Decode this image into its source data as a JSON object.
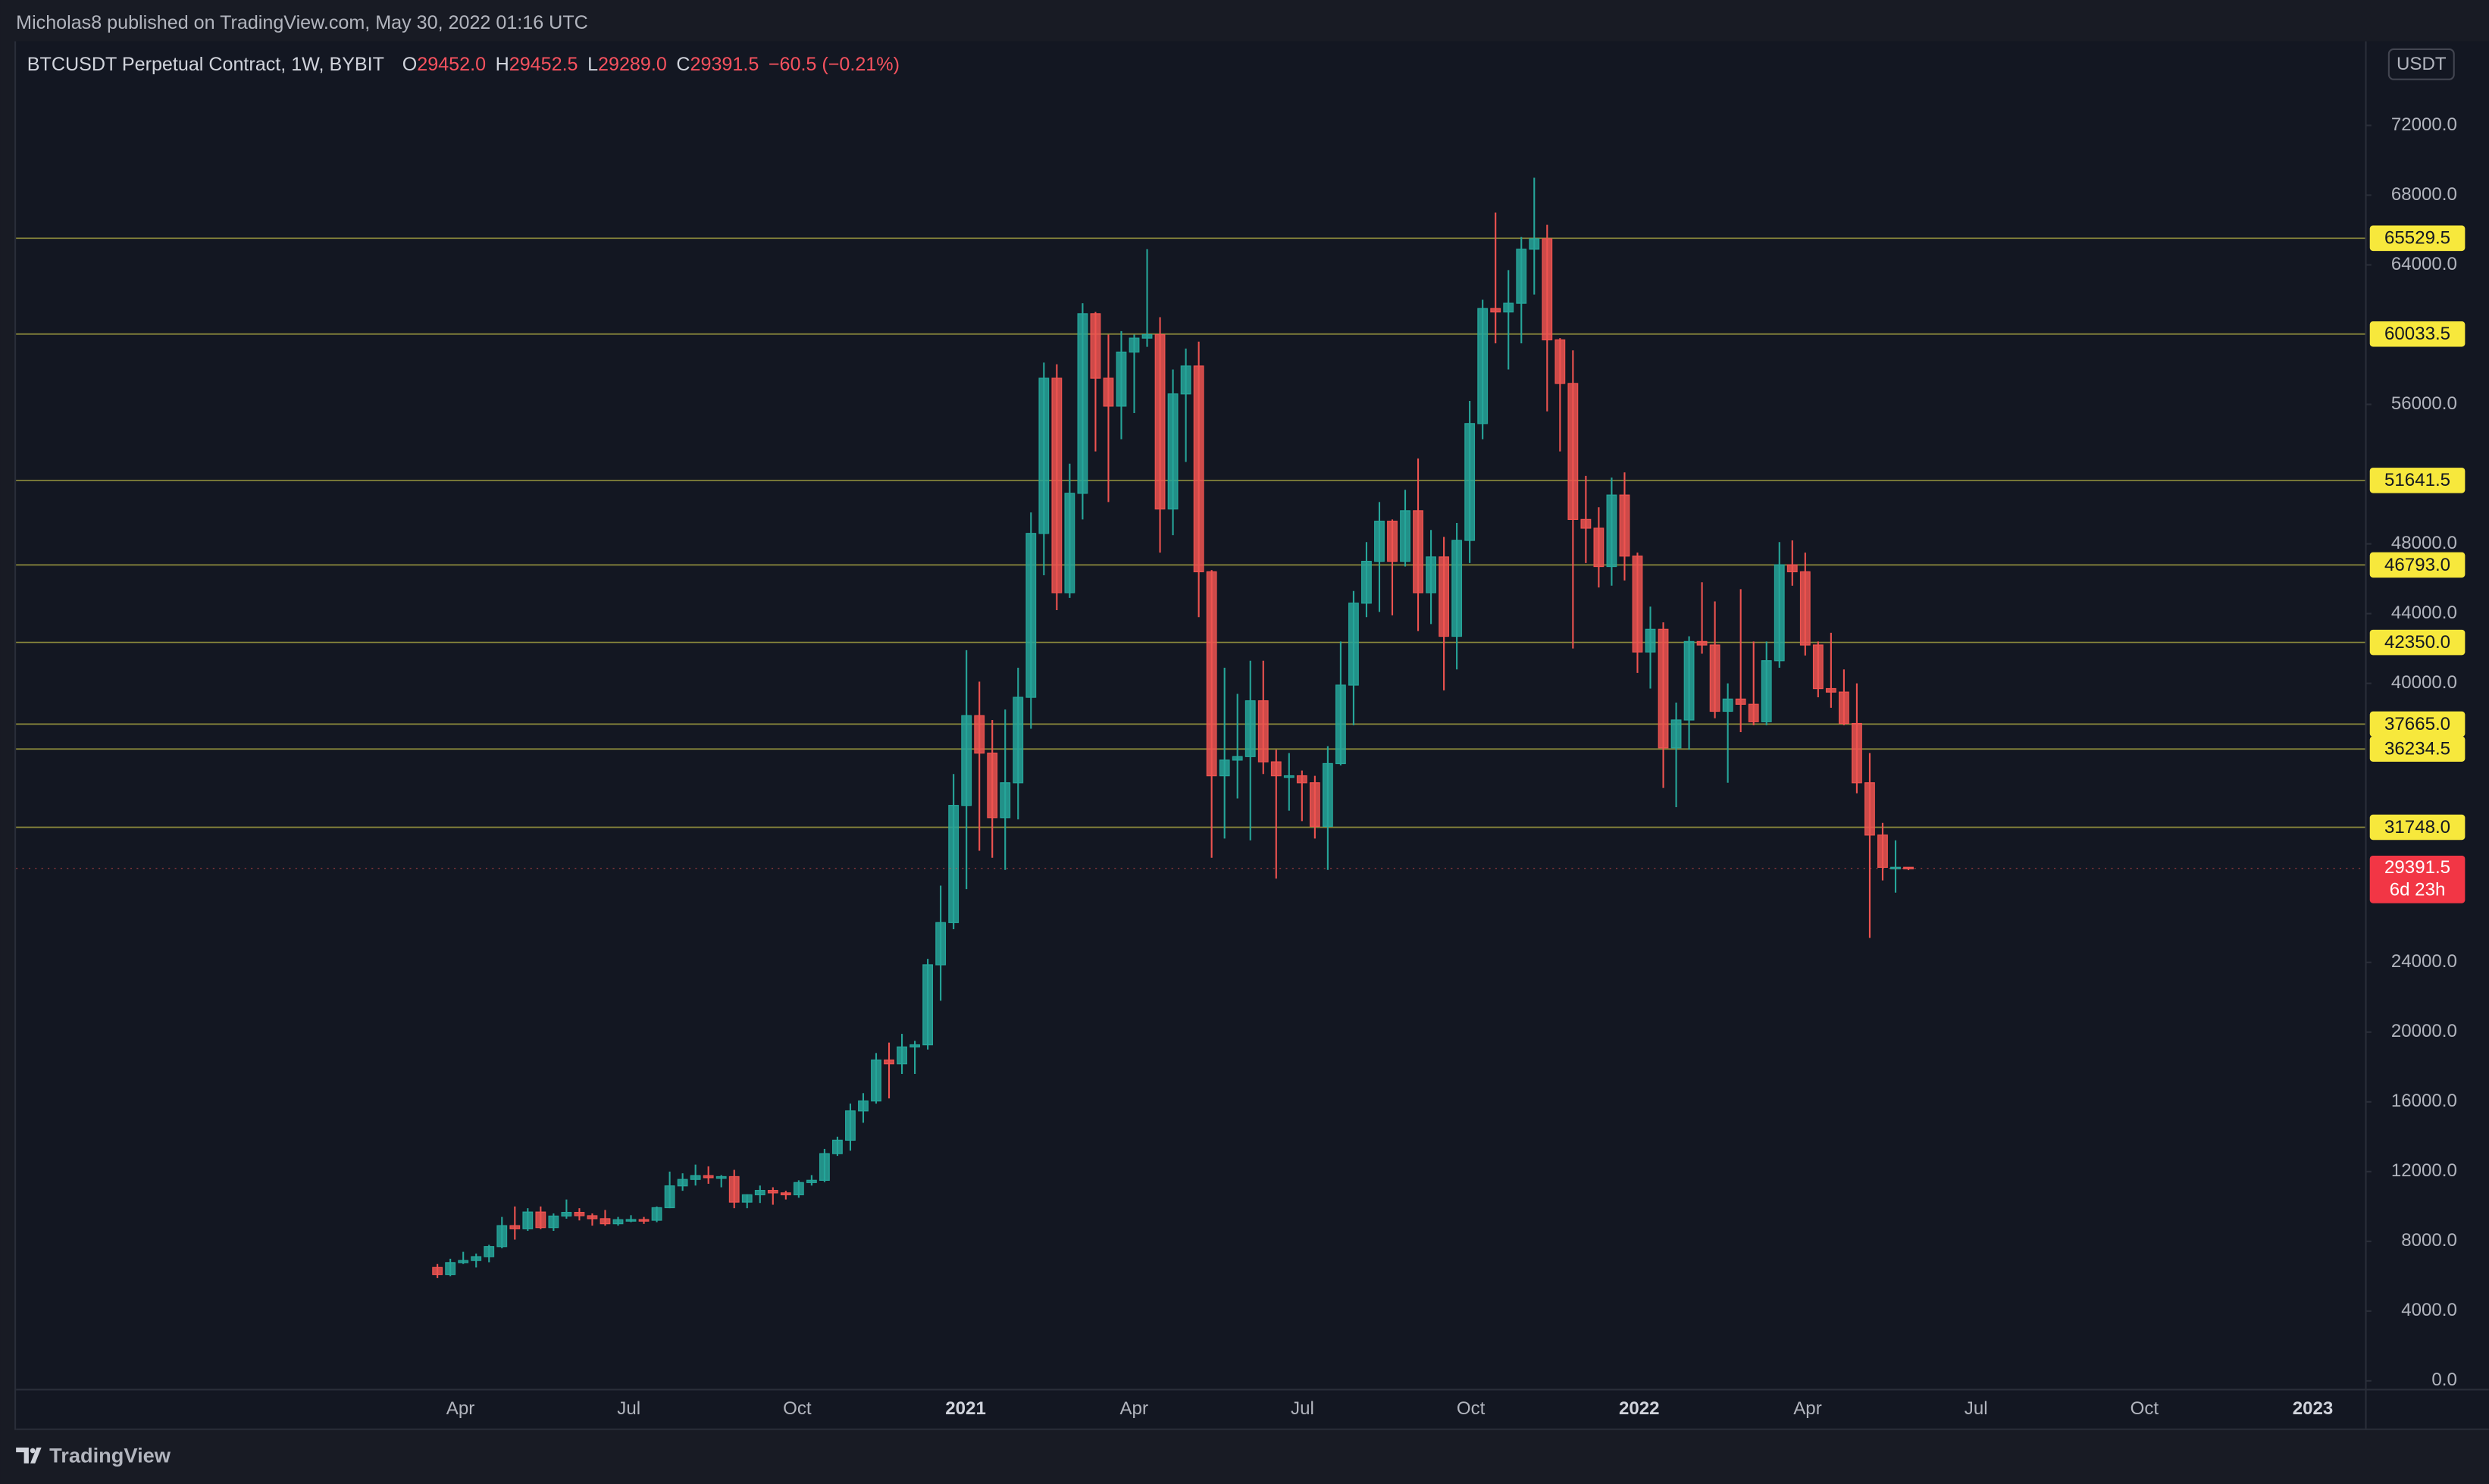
{
  "attribution": "Micholas8 published on TradingView.com, May 30, 2022 01:16 UTC",
  "brand": "TradingView",
  "chart_data": {
    "type": "candlestick",
    "title": "BTCUSDT Perpetual Contract, 1W, BYBIT",
    "currency_button": "USDT",
    "ohlc_legend": [
      {
        "label": "O",
        "value": "29452.0"
      },
      {
        "label": "H",
        "value": "29452.5"
      },
      {
        "label": "L",
        "value": "29289.0"
      },
      {
        "label": "C",
        "value": "29391.5"
      }
    ],
    "change": "−60.5 (−0.21%)",
    "up_color": "#26a69a",
    "down_color": "#ef5350",
    "level_color": "#8c8a3c",
    "level_label_color": "#f7e83c",
    "grid": false,
    "ylim": [
      -455,
      76825
    ],
    "yticks": [
      {
        "value": 0,
        "label": "0.0"
      },
      {
        "value": 4000,
        "label": "4000.0"
      },
      {
        "value": 8000,
        "label": "8000.0"
      },
      {
        "value": 12000,
        "label": "12000.0"
      },
      {
        "value": 16000,
        "label": "16000.0"
      },
      {
        "value": 20000,
        "label": "20000.0"
      },
      {
        "value": 24000,
        "label": "24000.0"
      },
      {
        "value": 40000,
        "label": "40000.0"
      },
      {
        "value": 44000,
        "label": "44000.0"
      },
      {
        "value": 48000,
        "label": "48000.0"
      },
      {
        "value": 56000,
        "label": "56000.0"
      },
      {
        "value": 64000,
        "label": "64000.0"
      },
      {
        "value": 68000,
        "label": "68000.0"
      },
      {
        "value": 72000,
        "label": "72000.0"
      }
    ],
    "xticks": [
      "Apr",
      "Jul",
      "Oct",
      "2021",
      "Apr",
      "Jul",
      "Oct",
      "2022",
      "Apr",
      "Jul",
      "Oct",
      "2023"
    ],
    "levels": [
      {
        "value": 65529.5,
        "label": "65529.5"
      },
      {
        "value": 60033.5,
        "label": "60033.5"
      },
      {
        "value": 51641.5,
        "label": "51641.5"
      },
      {
        "value": 46793.0,
        "label": "46793.0"
      },
      {
        "value": 42350.0,
        "label": "42350.0"
      },
      {
        "value": 37665.0,
        "label": "37665.0"
      },
      {
        "value": 36234.5,
        "label": "36234.5"
      },
      {
        "value": 31748.0,
        "label": "31748.0"
      }
    ],
    "last_price": {
      "value": 29391.5,
      "label": "29391.5"
    },
    "countdown": "6d 23h",
    "open": [
      6500,
      6100,
      6780,
      6900,
      7120,
      7700,
      8900,
      8720,
      9680,
      8790,
      9450,
      9660,
      9470,
      9300,
      9010,
      9240,
      9250,
      9210,
      9930,
      11180,
      11550,
      11770,
      11650,
      11710,
      10250,
      10670,
      10920,
      10780,
      10670,
      11370,
      11500,
      13030,
      13800,
      15480,
      16050,
      18400,
      18180,
      19150,
      19270,
      23860,
      26280,
      33000,
      38150,
      36000,
      32300,
      34300,
      39200,
      48600,
      57500,
      45200,
      50900,
      61200,
      57500,
      55900,
      59000,
      59800,
      60000,
      50000,
      56600,
      58200,
      46400,
      34700,
      35600,
      35800,
      39000,
      35500,
      34700,
      34700,
      34300,
      31800,
      35400,
      39900,
      44600,
      47000,
      49300,
      47000,
      49900,
      45200,
      47250,
      42700,
      48200,
      54900,
      61500,
      61300,
      61800,
      64900,
      65500,
      59700,
      57200,
      49400,
      48900,
      46700,
      50800,
      47300,
      41800,
      43100,
      36300,
      37900,
      42400,
      42200,
      38400,
      39100,
      38800,
      37800,
      41300,
      46800,
      46400,
      42200,
      39700,
      39500,
      37700,
      34300,
      31300,
      29450,
      29452
    ],
    "high": [
      6700,
      7000,
      7400,
      7300,
      7800,
      9400,
      10000,
      9900,
      10000,
      9600,
      10400,
      9900,
      9600,
      9800,
      9400,
      9500,
      9400,
      10000,
      12000,
      11900,
      12400,
      12300,
      11800,
      12100,
      10700,
      11200,
      11100,
      10900,
      11500,
      11800,
      13300,
      14000,
      15900,
      16500,
      18800,
      19400,
      19900,
      19500,
      24200,
      28400,
      34800,
      41900,
      40100,
      37900,
      38500,
      40900,
      49800,
      58400,
      58300,
      52600,
      61800,
      61300,
      60000,
      60200,
      60000,
      64900,
      61000,
      58000,
      59200,
      59600,
      46500,
      40900,
      39400,
      41300,
      41300,
      36200,
      36000,
      35000,
      34700,
      36400,
      42400,
      45300,
      48100,
      50400,
      49400,
      51100,
      52900,
      48800,
      48400,
      49200,
      56200,
      62000,
      67000,
      63700,
      65600,
      69000,
      66300,
      59800,
      59100,
      51900,
      50100,
      51800,
      52100,
      47500,
      44400,
      43500,
      38900,
      42700,
      45800,
      44700,
      40000,
      45400,
      42400,
      42400,
      48100,
      48200,
      47500,
      42400,
      42900,
      40800,
      40000,
      36000,
      32000,
      31000,
      29452.5
    ],
    "low": [
      5900,
      6000,
      6700,
      6500,
      6800,
      7600,
      8100,
      8600,
      8700,
      8600,
      9300,
      9200,
      8900,
      8900,
      8900,
      9100,
      9000,
      9100,
      9900,
      10900,
      11200,
      11300,
      11100,
      9900,
      9900,
      10200,
      10100,
      10400,
      10500,
      11200,
      11400,
      12900,
      13200,
      14800,
      15900,
      16200,
      17600,
      17600,
      19000,
      21800,
      25900,
      28200,
      30400,
      30000,
      29300,
      32200,
      37400,
      46200,
      44200,
      44900,
      49400,
      53300,
      50400,
      54000,
      55500,
      59300,
      47500,
      48500,
      52700,
      43800,
      30000,
      31100,
      33400,
      31000,
      34800,
      28800,
      32700,
      32100,
      31100,
      29300,
      35300,
      37600,
      43800,
      44100,
      43900,
      46700,
      43000,
      43400,
      39600,
      40800,
      46900,
      54000,
      59500,
      58000,
      59500,
      62300,
      55600,
      53300,
      42000,
      46900,
      45500,
      45600,
      45900,
      40600,
      39700,
      34000,
      32900,
      36200,
      41700,
      38000,
      34300,
      37200,
      37600,
      37600,
      40900,
      45600,
      41600,
      39200,
      38600,
      37600,
      33700,
      25400,
      28700,
      28000,
      29289
    ],
    "close": [
      6100,
      6780,
      6900,
      7120,
      7700,
      8900,
      8720,
      9680,
      8790,
      9450,
      9660,
      9470,
      9300,
      9010,
      9240,
      9250,
      9210,
      9930,
      11180,
      11550,
      11770,
      11650,
      11710,
      10250,
      10670,
      10920,
      10780,
      10670,
      11370,
      11500,
      13030,
      13800,
      15480,
      16050,
      18400,
      18180,
      19150,
      19270,
      23860,
      26280,
      33000,
      38150,
      36000,
      32300,
      34300,
      39200,
      48600,
      57500,
      45200,
      50900,
      61200,
      57500,
      55900,
      59000,
      59800,
      60000,
      50000,
      56600,
      58200,
      46400,
      34700,
      35600,
      35800,
      39000,
      35500,
      34700,
      34700,
      34300,
      31800,
      35400,
      39900,
      44600,
      47000,
      49300,
      47000,
      49900,
      45200,
      47250,
      42700,
      48200,
      54900,
      61500,
      61300,
      61800,
      64900,
      65500,
      59700,
      57200,
      49400,
      48900,
      46700,
      50800,
      47300,
      41800,
      43100,
      36300,
      37900,
      42400,
      42200,
      38400,
      39100,
      38800,
      37800,
      41300,
      46800,
      46400,
      42200,
      39700,
      39500,
      37700,
      34300,
      31300,
      29450,
      29452,
      29391.5
    ]
  }
}
